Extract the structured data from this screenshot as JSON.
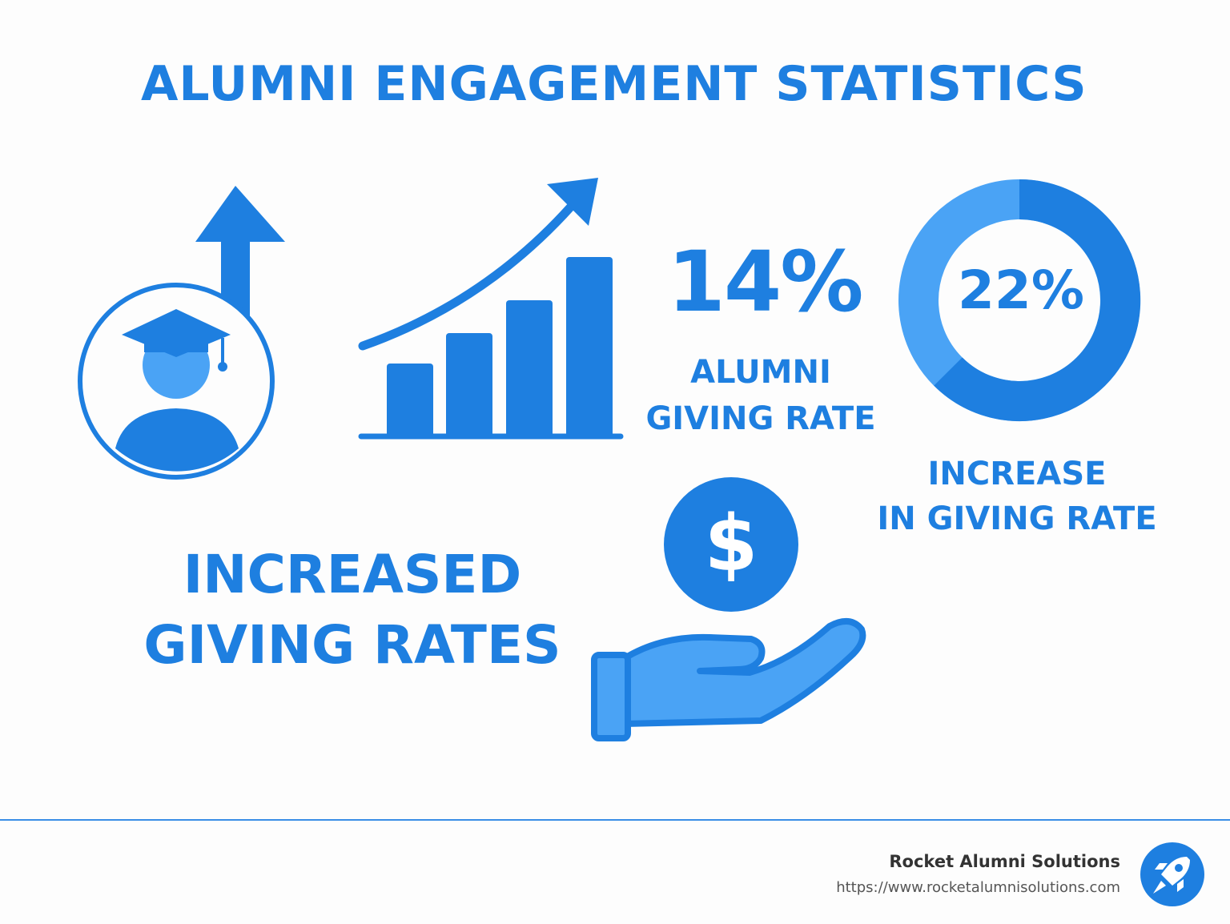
{
  "title": "ALUMNI ENGAGEMENT STATISTICS",
  "stat_giving_rate": {
    "value": "14%",
    "label_line1": "ALUMNI",
    "label_line2": "GIVING RATE"
  },
  "stat_increase": {
    "value": "22%",
    "label_line1": "INCREASE",
    "label_line2": "IN GIVING RATE"
  },
  "headline": {
    "line1": "INCREASED",
    "line2": "GIVING RATES"
  },
  "footer": {
    "brand_name": "Rocket Alumni Solutions",
    "brand_url": "https://www.rocketalumnisolutions.com"
  },
  "icons": [
    "graduate-up-arrow-icon",
    "bar-chart-growth-icon",
    "donut-ring-icon",
    "hand-coin-dollar-icon",
    "rocket-logo-icon"
  ],
  "colors": {
    "primary": "#1e7fe0",
    "light": "#4aa3f5",
    "background": "#fdfdfd"
  }
}
